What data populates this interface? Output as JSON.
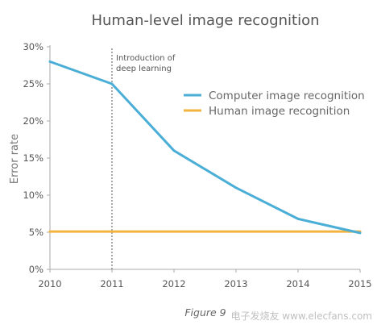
{
  "chart_data": {
    "type": "line",
    "title": "Human-level image recognition",
    "xlabel": "",
    "ylabel": "Error rate",
    "x": [
      2010,
      2011,
      2012,
      2013,
      2014,
      2015
    ],
    "xlim": [
      2010,
      2015
    ],
    "ylim": [
      0,
      30
    ],
    "x_ticks": [
      "2010",
      "2011",
      "2012",
      "2013",
      "2014",
      "2015"
    ],
    "y_ticks": [
      "0%",
      "5%",
      "10%",
      "15%",
      "20%",
      "25%",
      "30%"
    ],
    "grid": false,
    "legend_position": "top-right",
    "series": [
      {
        "name": "Computer image recognition",
        "color": "#4aaed6",
        "values": [
          28,
          25,
          16,
          11,
          6.8,
          4.9
        ]
      },
      {
        "name": "Human image recognition",
        "color": "#f2b43c",
        "values": [
          5.1,
          5.1,
          5.1,
          5.1,
          5.1,
          5.1
        ]
      }
    ],
    "annotation": {
      "x": 2011,
      "text_lines": [
        "Introduction of",
        "deep learning"
      ]
    },
    "caption": "Figure 9"
  },
  "watermark": "电子发烧友 www.elecfans.com"
}
